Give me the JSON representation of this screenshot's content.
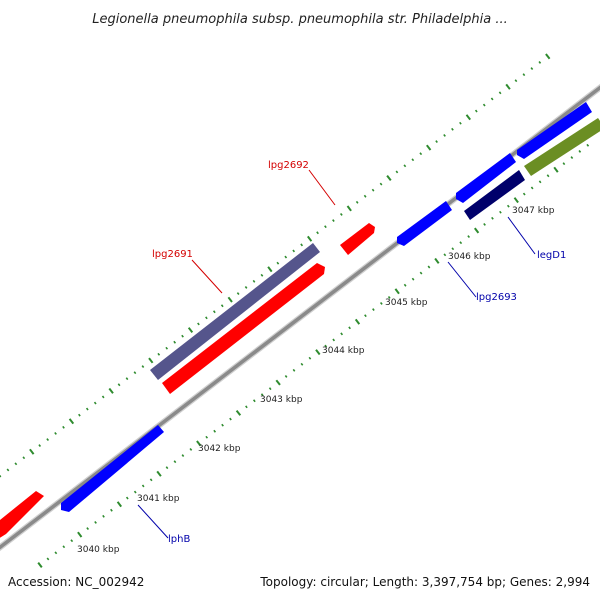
{
  "header": {
    "title": "Legionella pneumophila subsp. pneumophila str. Philadelphia ..."
  },
  "footer": {
    "accession": "Accession: NC_002942",
    "summary": "Topology: circular; Length: 3,397,754 bp; Genes: 2,994"
  },
  "colors": {
    "backbone": "#8a8a8a",
    "tick": "#2e8b2e",
    "forward_gene": "#ff0000",
    "reverse_gene": "#0000ff",
    "purple_gene": "#55558c",
    "navy_gene": "#00006b",
    "olive_gene": "#6b8e23",
    "forward_label": "#d40000",
    "reverse_label": "#0000aa"
  },
  "ticks": [
    {
      "label": "3040 kbp"
    },
    {
      "label": "3041 kbp"
    },
    {
      "label": "3042 kbp"
    },
    {
      "label": "3043 kbp"
    },
    {
      "label": "3044 kbp"
    },
    {
      "label": "3045 kbp"
    },
    {
      "label": "3046 kbp"
    },
    {
      "label": "3047 kbp"
    }
  ],
  "genes": [
    {
      "name": "lphB",
      "strand": "reverse"
    },
    {
      "name": "lpg2691",
      "strand": "forward"
    },
    {
      "name": "lpg2692",
      "strand": "forward"
    },
    {
      "name": "lpg2693",
      "strand": "reverse"
    },
    {
      "name": "legD1",
      "strand": "reverse"
    }
  ]
}
